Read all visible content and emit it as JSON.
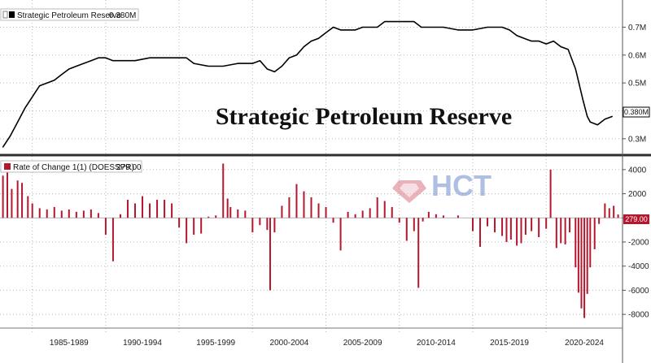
{
  "chart_data": [
    {
      "type": "line",
      "title": "Strategic Petroleum Reserve",
      "legend_label": "Strategic Petroleum Reserve",
      "last_value_label": "0.380M",
      "callout_label": "0.380M",
      "color": "#000000",
      "ylim": [
        0.25,
        0.78
      ],
      "y_ticks": [
        0.3,
        0.4,
        0.5,
        0.6,
        0.7
      ],
      "y_tick_labels": [
        "0.3M",
        "0.4M",
        "0.5M",
        "0.6M",
        "0.7M"
      ],
      "x": [
        1983.0,
        1983.5,
        1984.0,
        1984.5,
        1985.0,
        1985.5,
        1986.0,
        1986.5,
        1987.0,
        1987.5,
        1988.0,
        1988.5,
        1989.0,
        1989.5,
        1990.0,
        1990.5,
        1991.0,
        1992.0,
        1993.0,
        1994.0,
        1995.0,
        1995.5,
        1996.0,
        1997.0,
        1998.0,
        1999.0,
        1999.5,
        2000.0,
        2000.5,
        2001.0,
        2001.5,
        2002.0,
        2002.5,
        2003.0,
        2003.5,
        2004.0,
        2004.5,
        2005.0,
        2005.5,
        2006.0,
        2007.0,
        2007.5,
        2008.0,
        2008.5,
        2009.0,
        2009.5,
        2010.0,
        2011.0,
        2011.5,
        2012.0,
        2013.0,
        2014.0,
        2015.0,
        2016.0,
        2017.0,
        2017.5,
        2018.0,
        2018.5,
        2019.0,
        2019.5,
        2020.0,
        2020.5,
        2021.0,
        2021.5,
        2022.0,
        2022.5,
        2022.8,
        2023.0,
        2023.5,
        2024.0,
        2024.5
      ],
      "values": [
        0.27,
        0.31,
        0.36,
        0.41,
        0.45,
        0.49,
        0.5,
        0.51,
        0.53,
        0.55,
        0.56,
        0.57,
        0.58,
        0.59,
        0.59,
        0.58,
        0.58,
        0.58,
        0.59,
        0.59,
        0.59,
        0.59,
        0.57,
        0.56,
        0.56,
        0.57,
        0.57,
        0.57,
        0.58,
        0.55,
        0.54,
        0.56,
        0.59,
        0.6,
        0.63,
        0.65,
        0.66,
        0.68,
        0.7,
        0.69,
        0.69,
        0.7,
        0.7,
        0.7,
        0.72,
        0.72,
        0.72,
        0.72,
        0.7,
        0.7,
        0.7,
        0.69,
        0.69,
        0.7,
        0.7,
        0.69,
        0.67,
        0.66,
        0.65,
        0.65,
        0.64,
        0.65,
        0.63,
        0.62,
        0.55,
        0.44,
        0.38,
        0.36,
        0.35,
        0.37,
        0.38
      ]
    },
    {
      "type": "bar",
      "title": "Rate of Change 1(1) (DOESSPR)",
      "legend_label": "Rate of Change 1(1) (DOESSPR)",
      "last_value_label": "279.00",
      "callout_label": "279.00",
      "color": "#b5172f",
      "ylim": [
        -9000,
        5000
      ],
      "y_ticks": [
        -8000,
        -6000,
        -4000,
        -2000,
        0,
        2000,
        4000
      ],
      "y_tick_labels": [
        "-8000",
        "-6000",
        "-4000",
        "-2000",
        "0",
        "2000",
        "4000"
      ],
      "x": [
        1983.0,
        1983.3,
        1983.6,
        1984.0,
        1984.3,
        1984.7,
        1985.0,
        1985.5,
        1986.0,
        1986.5,
        1987.0,
        1987.5,
        1988.0,
        1988.5,
        1989.0,
        1989.5,
        1990.0,
        1990.5,
        1991.0,
        1991.5,
        1992.0,
        1992.5,
        1993.0,
        1993.5,
        1994.0,
        1994.5,
        1995.0,
        1995.5,
        1996.0,
        1996.5,
        1997.0,
        1997.5,
        1998.0,
        1998.3,
        1998.5,
        1999.0,
        1999.5,
        2000.0,
        2000.5,
        2001.0,
        2001.2,
        2001.5,
        2002.0,
        2002.5,
        2003.0,
        2003.5,
        2004.0,
        2004.5,
        2005.0,
        2005.5,
        2006.0,
        2006.5,
        2007.0,
        2007.5,
        2008.0,
        2008.5,
        2009.0,
        2009.5,
        2010.0,
        2010.5,
        2011.0,
        2011.3,
        2011.6,
        2012.0,
        2012.5,
        2013.0,
        2014.0,
        2015.0,
        2015.5,
        2016.0,
        2016.5,
        2017.0,
        2017.3,
        2017.6,
        2018.0,
        2018.3,
        2018.6,
        2019.0,
        2019.5,
        2020.0,
        2020.3,
        2020.7,
        2021.0,
        2021.3,
        2021.6,
        2022.0,
        2022.2,
        2022.4,
        2022.6,
        2022.8,
        2023.0,
        2023.3,
        2023.6,
        2024.0,
        2024.3,
        2024.6,
        2024.9
      ],
      "values": [
        3500,
        3800,
        2400,
        3100,
        2900,
        1800,
        1200,
        800,
        700,
        900,
        600,
        700,
        500,
        600,
        700,
        400,
        -1400,
        -3600,
        300,
        1500,
        1200,
        1800,
        1200,
        1500,
        1500,
        1200,
        -800,
        -2100,
        -1400,
        -1300,
        100,
        200,
        4500,
        1600,
        900,
        700,
        600,
        -1200,
        -600,
        -1000,
        -6000,
        -1200,
        1000,
        1700,
        2800,
        2200,
        1700,
        1200,
        900,
        -400,
        -2700,
        500,
        300,
        600,
        800,
        1700,
        1400,
        900,
        -400,
        -1900,
        -1100,
        -5800,
        -300,
        500,
        300,
        200,
        200,
        -1100,
        -2400,
        -700,
        -1200,
        -1500,
        -2000,
        -1800,
        -2300,
        -2100,
        -1400,
        -1100,
        -1600,
        -900,
        4000,
        -2500,
        -2100,
        -2200,
        -1200,
        -4100,
        -6200,
        -7500,
        -8300,
        -6300,
        -4100,
        -2600,
        -500,
        1200,
        800,
        1000,
        279
      ]
    }
  ],
  "x_axis": {
    "period_labels": [
      "1985-1989",
      "1990-1994",
      "1995-1999",
      "2000-2004",
      "2005-2009",
      "2010-2014",
      "2015-2019",
      "2020-2024"
    ],
    "period_starts": [
      1985,
      1990,
      1995,
      2000,
      2005,
      2010,
      2015,
      2020
    ],
    "range": [
      1982.8,
      2025.2
    ]
  },
  "watermark": "HCT",
  "colors": {
    "line": "#000000",
    "bars": "#b5172f",
    "grid": "#b8b8b8",
    "divider": "#2f2f2f",
    "watermark_logo": "#d97585",
    "watermark_text": "#6e8ccf"
  }
}
